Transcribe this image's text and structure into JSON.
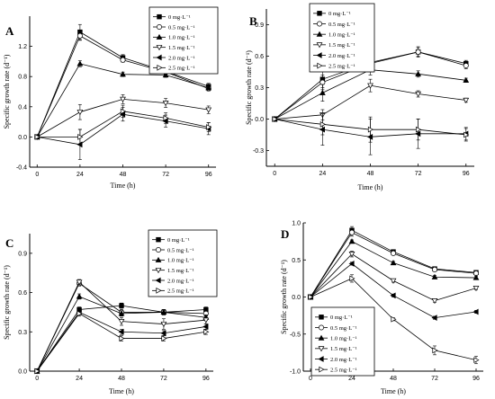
{
  "chart_data": [
    {
      "type": "line",
      "panel_label": "A",
      "xlabel": "Time (h)",
      "ylabel": "Specific growth rate (d⁻¹)",
      "x": [
        0,
        24,
        48,
        72,
        96
      ],
      "xticks": [
        "0",
        "24",
        "48",
        "72",
        "96"
      ],
      "ylim": [
        -0.4,
        1.6
      ],
      "yticks": [
        -0.4,
        0.0,
        0.4,
        0.8,
        1.2
      ],
      "ytick_labels": [
        "-0.4",
        "0.0",
        "0.4",
        "0.8",
        "1.2"
      ],
      "legend_position": "top-right",
      "series": [
        {
          "name": "0   mg·L⁻¹",
          "marker": "square-filled",
          "values": [
            0,
            1.39,
            1.05,
            0.87,
            0.67
          ],
          "errors": [
            0,
            0.1,
            0.04,
            0.04,
            0.04
          ]
        },
        {
          "name": "0.5 mg·L⁻¹",
          "marker": "circle-open",
          "values": [
            0,
            1.34,
            1.02,
            0.86,
            0.64
          ],
          "errors": [
            0,
            0.06,
            0.03,
            0.03,
            0.03
          ]
        },
        {
          "name": "1.0 mg·L⁻¹",
          "marker": "triangle-up-filled",
          "values": [
            0,
            0.97,
            0.83,
            0.82,
            0.65
          ],
          "errors": [
            0,
            0.04,
            0.03,
            0.03,
            0.03
          ]
        },
        {
          "name": "1.5 mg·L⁻¹",
          "marker": "triangle-down-open",
          "values": [
            0,
            0.33,
            0.5,
            0.45,
            0.36
          ],
          "errors": [
            0,
            0.1,
            0.06,
            0.06,
            0.05
          ]
        },
        {
          "name": "2.0 mg·L⁻¹",
          "marker": "triangle-left-filled",
          "values": [
            0,
            -0.1,
            0.3,
            0.21,
            0.11
          ],
          "errors": [
            0,
            0.2,
            0.09,
            0.08,
            0.08
          ]
        },
        {
          "name": "2.5 mg·L⁻¹",
          "marker": "triangle-right-open",
          "values": [
            0,
            0.0,
            0.34,
            0.25,
            0.13
          ],
          "errors": [
            0,
            0.1,
            0.08,
            0.07,
            0.06
          ]
        }
      ]
    },
    {
      "type": "line",
      "panel_label": "B",
      "xlabel": "Time (h)",
      "ylabel": "Specific growth rate (d⁻¹)",
      "x": [
        0,
        24,
        48,
        72,
        96
      ],
      "xticks": [
        "0",
        "24",
        "48",
        "72",
        "96"
      ],
      "ylim": [
        -0.45,
        1.05
      ],
      "yticks": [
        -0.3,
        0.0,
        0.3,
        0.6,
        0.9
      ],
      "ytick_labels": [
        "-0.3",
        "0.0",
        "0.3",
        "0.6",
        "0.9"
      ],
      "legend_position": "top-right",
      "series": [
        {
          "name": "0   mg·L⁻¹",
          "marker": "square-filled",
          "values": [
            0,
            0.38,
            0.54,
            0.64,
            0.53
          ],
          "errors": [
            0,
            0.08,
            0.05,
            0.04,
            0.03
          ]
        },
        {
          "name": "0.5 mg·L⁻¹",
          "marker": "circle-open",
          "values": [
            0,
            0.35,
            0.53,
            0.64,
            0.51
          ],
          "errors": [
            0,
            0.07,
            0.05,
            0.05,
            0.03
          ]
        },
        {
          "name": "1.0 mg·L⁻¹",
          "marker": "triangle-up-filled",
          "values": [
            0,
            0.25,
            0.47,
            0.43,
            0.37
          ],
          "errors": [
            0,
            0.08,
            0.05,
            0.03,
            0.02
          ]
        },
        {
          "name": "1.5 mg·L⁻¹",
          "marker": "triangle-down-open",
          "values": [
            0,
            0.04,
            0.32,
            0.24,
            0.18
          ],
          "errors": [
            0,
            0.05,
            0.06,
            0.03,
            0.02
          ]
        },
        {
          "name": "2.0 mg·L⁻¹",
          "marker": "triangle-left-filled",
          "values": [
            0,
            -0.1,
            -0.17,
            -0.14,
            -0.14
          ],
          "errors": [
            0,
            0.15,
            0.17,
            0.14,
            0.06
          ]
        },
        {
          "name": "2.5 mg·L⁻¹",
          "marker": "triangle-right-open",
          "values": [
            0,
            -0.05,
            -0.1,
            -0.1,
            -0.15
          ],
          "errors": [
            0,
            0.1,
            0.12,
            0.1,
            0.06
          ]
        }
      ]
    },
    {
      "type": "line",
      "panel_label": "C",
      "xlabel": "Time (h)",
      "ylabel": "Specific growth rate (d⁻¹)",
      "x": [
        0,
        24,
        48,
        72,
        96
      ],
      "xticks": [
        "0",
        "24",
        "48",
        "72",
        "96"
      ],
      "ylim": [
        0.0,
        1.05
      ],
      "yticks": [
        0.0,
        0.3,
        0.6,
        0.9
      ],
      "ytick_labels": [
        "0.0",
        "0.3",
        "0.6",
        "0.9"
      ],
      "legend_position": "top-right",
      "series": [
        {
          "name": "0   mg·L⁻¹",
          "marker": "square-filled",
          "values": [
            0,
            0.47,
            0.5,
            0.45,
            0.47
          ],
          "errors": [
            0,
            0.02,
            0.02,
            0.02,
            0.02
          ]
        },
        {
          "name": "0.5 mg·L⁻¹",
          "marker": "circle-open",
          "values": [
            0,
            0.67,
            0.45,
            0.45,
            0.44
          ],
          "errors": [
            0,
            0.02,
            0.02,
            0.02,
            0.02
          ]
        },
        {
          "name": "1.0 mg·L⁻¹",
          "marker": "triangle-up-filled",
          "values": [
            0,
            0.57,
            0.44,
            0.45,
            0.41
          ],
          "errors": [
            0,
            0.02,
            0.02,
            0.02,
            0.02
          ]
        },
        {
          "name": "1.5 mg·L⁻¹",
          "marker": "triangle-down-open",
          "values": [
            0,
            0.68,
            0.38,
            0.36,
            0.39
          ],
          "errors": [
            0,
            0.02,
            0.03,
            0.04,
            0.03
          ]
        },
        {
          "name": "2.0 mg·L⁻¹",
          "marker": "triangle-left-filled",
          "values": [
            0,
            0.45,
            0.3,
            0.29,
            0.34
          ],
          "errors": [
            0,
            0.02,
            0.02,
            0.02,
            0.02
          ]
        },
        {
          "name": "2.5 mg·L⁻¹",
          "marker": "triangle-right-open",
          "values": [
            0,
            0.44,
            0.25,
            0.25,
            0.3
          ],
          "errors": [
            0,
            0.02,
            0.02,
            0.02,
            0.02
          ]
        }
      ]
    },
    {
      "type": "line",
      "panel_label": "D",
      "xlabel": "Time (h)",
      "ylabel": "Specific growth rate (d⁻¹)",
      "x": [
        0,
        24,
        48,
        72,
        96
      ],
      "xticks": [
        "0",
        "24",
        "48",
        "72",
        "96"
      ],
      "ylim": [
        -1.0,
        1.0
      ],
      "yticks": [
        -1.0,
        -0.5,
        0.0,
        0.5,
        1.0
      ],
      "ytick_labels": [
        "-1.0",
        "-0.5",
        "0.0",
        "0.5",
        "1.0"
      ],
      "legend_position": "bottom-left",
      "series": [
        {
          "name": "0    mg·L⁻¹",
          "marker": "square-filled",
          "values": [
            0,
            0.9,
            0.61,
            0.38,
            0.33
          ],
          "errors": [
            0,
            0.05,
            0.02,
            0.02,
            0.02
          ]
        },
        {
          "name": "0.5 mg·L⁻¹",
          "marker": "circle-open",
          "values": [
            0,
            0.87,
            0.59,
            0.37,
            0.32
          ],
          "errors": [
            0,
            0.05,
            0.02,
            0.02,
            0.02
          ]
        },
        {
          "name": "1.0 mg·L⁻¹",
          "marker": "triangle-up-filled",
          "values": [
            0,
            0.75,
            0.46,
            0.27,
            0.26
          ],
          "errors": [
            0,
            0.02,
            0.02,
            0.02,
            0.02
          ]
        },
        {
          "name": "1.5 mg·L⁻¹",
          "marker": "triangle-down-open",
          "values": [
            0,
            0.58,
            0.22,
            -0.05,
            0.12
          ],
          "errors": [
            0,
            0.04,
            0.02,
            0.02,
            0.02
          ]
        },
        {
          "name": "2.0 mg·L⁻¹",
          "marker": "triangle-left-filled",
          "values": [
            0,
            0.45,
            0.02,
            -0.28,
            -0.2
          ],
          "errors": [
            0,
            0.02,
            0.02,
            0.02,
            0.02
          ]
        },
        {
          "name": "2.5 mg·L⁻¹",
          "marker": "triangle-right-open",
          "values": [
            0,
            0.25,
            -0.3,
            -0.72,
            -0.85
          ],
          "errors": [
            0,
            0.05,
            0.02,
            0.06,
            0.05
          ]
        }
      ]
    }
  ]
}
